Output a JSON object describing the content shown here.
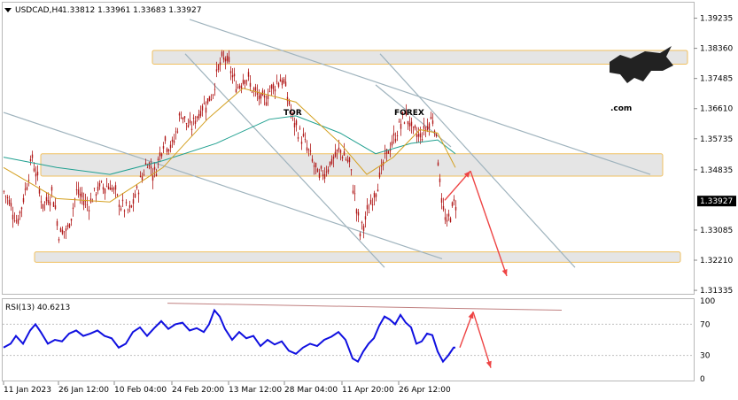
{
  "header": {
    "symbol": "USDCAD,H4",
    "ohlc": "1.33812 1.33961 1.33683 1.33927"
  },
  "logo": {
    "part1": "TOR",
    "part2": "FOREX",
    "suffix": ".com",
    "dark_color": "#222222",
    "accent_color": "#ff3d00"
  },
  "colors": {
    "candle": "#b01818",
    "ma_slow": "#20a090",
    "ma_fast": "#d4a020",
    "channel": "#9fb3bd",
    "zone_fill": "#e0e0e0",
    "zone_border": "#f0c060",
    "forecast_arrow": "#ee4444",
    "rsi_line": "#1010e0",
    "rsi_trend": "#c08080"
  },
  "chart_data": [
    {
      "type": "candlestick",
      "title": "USDCAD,H4",
      "y_ticks": [
        "1.39235",
        "1.38360",
        "1.37485",
        "1.36610",
        "1.35735",
        "1.34835",
        "1.33927",
        "1.33085",
        "1.32210",
        "1.31335"
      ],
      "current_price": "1.33927",
      "ylim": [
        1.3126,
        1.3966
      ],
      "x_ticks": [
        "11 Jan 2023",
        "26 Jan 12:00",
        "10 Feb 04:00",
        "24 Feb 20:00",
        "13 Mar 12:00",
        "28 Mar 04:00",
        "11 Apr 20:00",
        "26 Apr 12:00"
      ],
      "close_path": [
        [
          0,
          1.342
        ],
        [
          8,
          1.338
        ],
        [
          15,
          1.333
        ],
        [
          22,
          1.34
        ],
        [
          32,
          1.352
        ],
        [
          44,
          1.338
        ],
        [
          55,
          1.342
        ],
        [
          62,
          1.33
        ],
        [
          72,
          1.331
        ],
        [
          82,
          1.342
        ],
        [
          95,
          1.338
        ],
        [
          106,
          1.343
        ],
        [
          120,
          1.344
        ],
        [
          132,
          1.338
        ],
        [
          142,
          1.336
        ],
        [
          150,
          1.342
        ],
        [
          162,
          1.351
        ],
        [
          170,
          1.347
        ],
        [
          180,
          1.357
        ],
        [
          190,
          1.355
        ],
        [
          200,
          1.365
        ],
        [
          210,
          1.36
        ],
        [
          222,
          1.366
        ],
        [
          235,
          1.37
        ],
        [
          242,
          1.378
        ],
        [
          250,
          1.381
        ],
        [
          256,
          1.377
        ],
        [
          263,
          1.372
        ],
        [
          272,
          1.376
        ],
        [
          282,
          1.371
        ],
        [
          292,
          1.368
        ],
        [
          302,
          1.372
        ],
        [
          312,
          1.375
        ],
        [
          318,
          1.372
        ],
        [
          327,
          1.362
        ],
        [
          338,
          1.357
        ],
        [
          348,
          1.351
        ],
        [
          355,
          1.346
        ],
        [
          362,
          1.348
        ],
        [
          370,
          1.351
        ],
        [
          380,
          1.354
        ],
        [
          390,
          1.35
        ],
        [
          397,
          1.339
        ],
        [
          402,
          1.33
        ],
        [
          408,
          1.334
        ],
        [
          416,
          1.34
        ],
        [
          424,
          1.346
        ],
        [
          432,
          1.353
        ],
        [
          440,
          1.357
        ],
        [
          448,
          1.362
        ],
        [
          455,
          1.364
        ],
        [
          462,
          1.359
        ],
        [
          470,
          1.358
        ],
        [
          478,
          1.361
        ],
        [
          485,
          1.364
        ],
        [
          490,
          1.352
        ],
        [
          495,
          1.337
        ],
        [
          500,
          1.332
        ],
        [
          505,
          1.337
        ],
        [
          510,
          1.339
        ]
      ],
      "ma_slow": [
        [
          0,
          1.352
        ],
        [
          60,
          1.349
        ],
        [
          120,
          1.347
        ],
        [
          180,
          1.351
        ],
        [
          240,
          1.356
        ],
        [
          300,
          1.363
        ],
        [
          330,
          1.364
        ],
        [
          380,
          1.359
        ],
        [
          420,
          1.353
        ],
        [
          460,
          1.356
        ],
        [
          490,
          1.357
        ],
        [
          510,
          1.353
        ]
      ],
      "ma_fast": [
        [
          0,
          1.349
        ],
        [
          60,
          1.34
        ],
        [
          120,
          1.339
        ],
        [
          180,
          1.349
        ],
        [
          230,
          1.363
        ],
        [
          270,
          1.372
        ],
        [
          330,
          1.368
        ],
        [
          380,
          1.356
        ],
        [
          410,
          1.347
        ],
        [
          440,
          1.352
        ],
        [
          470,
          1.36
        ],
        [
          490,
          1.359
        ],
        [
          510,
          1.349
        ]
      ],
      "zones": [
        {
          "from": 1.379,
          "to": 1.383
        },
        {
          "from": 1.3465,
          "to": 1.353
        },
        {
          "from": 1.3215,
          "to": 1.3245
        }
      ],
      "channel_lines": [
        {
          "from": [
            0,
            1.365
          ],
          "to": [
            495,
            1.3225
          ]
        },
        {
          "from": [
            210,
            1.392
          ],
          "to": [
            730,
            1.347
          ]
        },
        {
          "from": [
            205,
            1.382
          ],
          "to": [
            430,
            1.32
          ]
        },
        {
          "from": [
            425,
            1.382
          ],
          "to": [
            645,
            1.32
          ]
        },
        {
          "from": [
            420,
            1.373
          ],
          "to": [
            505,
            1.355
          ]
        }
      ],
      "forecast": [
        [
          498,
          1.3395
        ],
        [
          527,
          1.348
        ],
        [
          568,
          1.3175
        ]
      ]
    },
    {
      "type": "line",
      "title": "RSI(13) 40.6213",
      "y_ticks": [
        "100",
        "70",
        "30",
        "0"
      ],
      "ylim": [
        0,
        100
      ],
      "levels": [
        70,
        30
      ],
      "values": [
        [
          0,
          40
        ],
        [
          8,
          45
        ],
        [
          14,
          55
        ],
        [
          22,
          45
        ],
        [
          30,
          62
        ],
        [
          36,
          70
        ],
        [
          42,
          60
        ],
        [
          50,
          45
        ],
        [
          58,
          50
        ],
        [
          66,
          48
        ],
        [
          74,
          58
        ],
        [
          82,
          62
        ],
        [
          90,
          55
        ],
        [
          98,
          58
        ],
        [
          106,
          62
        ],
        [
          114,
          55
        ],
        [
          122,
          52
        ],
        [
          130,
          40
        ],
        [
          138,
          45
        ],
        [
          146,
          60
        ],
        [
          154,
          66
        ],
        [
          162,
          55
        ],
        [
          170,
          65
        ],
        [
          178,
          74
        ],
        [
          186,
          64
        ],
        [
          194,
          70
        ],
        [
          202,
          72
        ],
        [
          210,
          62
        ],
        [
          218,
          65
        ],
        [
          226,
          60
        ],
        [
          232,
          70
        ],
        [
          238,
          88
        ],
        [
          244,
          80
        ],
        [
          250,
          64
        ],
        [
          258,
          50
        ],
        [
          266,
          60
        ],
        [
          274,
          52
        ],
        [
          282,
          55
        ],
        [
          290,
          42
        ],
        [
          298,
          50
        ],
        [
          306,
          44
        ],
        [
          314,
          48
        ],
        [
          322,
          36
        ],
        [
          330,
          32
        ],
        [
          338,
          40
        ],
        [
          346,
          45
        ],
        [
          354,
          42
        ],
        [
          362,
          50
        ],
        [
          370,
          54
        ],
        [
          378,
          60
        ],
        [
          386,
          50
        ],
        [
          394,
          26
        ],
        [
          400,
          22
        ],
        [
          406,
          35
        ],
        [
          412,
          45
        ],
        [
          418,
          52
        ],
        [
          424,
          68
        ],
        [
          430,
          80
        ],
        [
          436,
          76
        ],
        [
          442,
          70
        ],
        [
          448,
          82
        ],
        [
          454,
          72
        ],
        [
          460,
          66
        ],
        [
          466,
          45
        ],
        [
          472,
          48
        ],
        [
          478,
          58
        ],
        [
          484,
          56
        ],
        [
          490,
          35
        ],
        [
          496,
          22
        ],
        [
          502,
          30
        ],
        [
          508,
          40
        ],
        [
          510,
          40
        ]
      ],
      "trend_line": [
        [
          185,
          97
        ],
        [
          630,
          88
        ]
      ],
      "forecast": [
        [
          515,
          40
        ],
        [
          530,
          86
        ],
        [
          550,
          14
        ]
      ]
    }
  ]
}
